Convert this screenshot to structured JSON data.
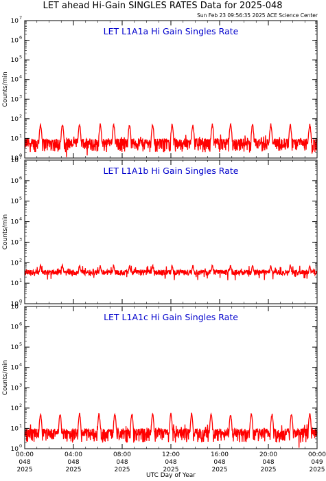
{
  "title": "LET ahead Hi-Gain SINGLES RATES Data for 2025-048",
  "timestamp": "Sun Feb 23 09:56:35 2025 ACE Science Center",
  "xlabel": "UTC Day of Year",
  "ylabel": "Counts/min",
  "colors": {
    "series": "#ff0000",
    "panel_title": "#0000cc",
    "axes": "#000000"
  },
  "chart_data": [
    {
      "type": "line",
      "title": "LET L1A1a Hi Gain Singles Rate",
      "xlabel": "UTC Day of Year",
      "ylabel": "Counts/min",
      "yscale": "log",
      "ylim": [
        1,
        10000000
      ],
      "xlim": [
        "2025-048 00:00",
        "2025-049 00:00"
      ],
      "series": [
        {
          "baseline": 5,
          "spike_peak": 50,
          "spike_times_hours": [
            1.3,
            3.1,
            4.5,
            6.2,
            7.3,
            8.6,
            10.5,
            12.1,
            13.8,
            15.4,
            16.9,
            18.7,
            20.2,
            21.8,
            23.4
          ],
          "noise_range": [
            2,
            10
          ]
        }
      ]
    },
    {
      "type": "line",
      "title": "LET L1A1b Hi Gain Singles Rate",
      "xlabel": "UTC Day of Year",
      "ylabel": "Counts/min",
      "yscale": "log",
      "ylim": [
        1,
        10000000
      ],
      "xlim": [
        "2025-048 00:00",
        "2025-049 00:00"
      ],
      "series": [
        {
          "baseline": 33,
          "spike_peak": 60,
          "spike_times_hours": [
            1.3,
            3.1,
            4.5,
            6.2,
            7.3,
            8.6,
            10.5,
            12.1,
            13.8,
            15.4,
            16.9,
            18.7,
            20.2,
            21.8,
            23.4
          ],
          "noise_range": [
            25,
            45
          ]
        }
      ]
    },
    {
      "type": "line",
      "title": "LET L1A1c Hi Gain Singles Rate",
      "xlabel": "UTC Day of Year",
      "ylabel": "Counts/min",
      "yscale": "log",
      "ylim": [
        1,
        10000000
      ],
      "xlim": [
        "2025-048 00:00",
        "2025-049 00:00"
      ],
      "series": [
        {
          "baseline": 5,
          "spike_peak": 50,
          "spike_times_hours": [
            1.3,
            2.9,
            4.5,
            6.1,
            7.4,
            8.8,
            10.5,
            12.0,
            13.7,
            15.3,
            16.9,
            18.6,
            20.3,
            21.9,
            23.4
          ],
          "noise_range": [
            2,
            10
          ]
        }
      ]
    }
  ],
  "y_ticks": [
    "10",
    "10",
    "10",
    "10",
    "10",
    "10",
    "10",
    "10"
  ],
  "y_exponents": [
    "0",
    "1",
    "2",
    "3",
    "4",
    "5",
    "6",
    "7"
  ],
  "x_ticks": [
    {
      "time": "00:00",
      "doy": "048",
      "year": "2025"
    },
    {
      "time": "04:00",
      "doy": "048",
      "year": "2025"
    },
    {
      "time": "08:00",
      "doy": "048",
      "year": "2025"
    },
    {
      "time": "12:00",
      "doy": "048",
      "year": "2025"
    },
    {
      "time": "16:00",
      "doy": "048",
      "year": "2025"
    },
    {
      "time": "20:00",
      "doy": "048",
      "year": "2025"
    },
    {
      "time": "00:00",
      "doy": "049",
      "year": "2025"
    }
  ]
}
